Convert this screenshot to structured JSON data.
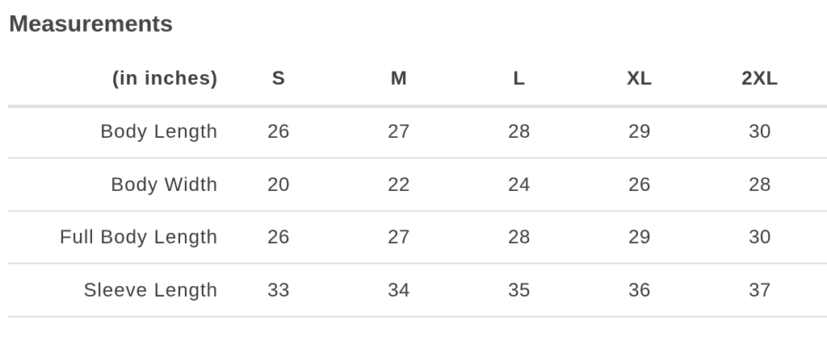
{
  "title": "Measurements",
  "header": {
    "unit_label": "(in inches)",
    "sizes": [
      "S",
      "M",
      "L",
      "XL",
      "2XL"
    ]
  },
  "rows": [
    {
      "label": "Body Length",
      "values": [
        "26",
        "27",
        "28",
        "29",
        "30"
      ]
    },
    {
      "label": "Body Width",
      "values": [
        "20",
        "22",
        "24",
        "26",
        "28"
      ]
    },
    {
      "label": "Full Body Length",
      "values": [
        "26",
        "27",
        "28",
        "29",
        "30"
      ]
    },
    {
      "label": "Sleeve Length",
      "values": [
        "33",
        "34",
        "35",
        "36",
        "37"
      ]
    }
  ]
}
